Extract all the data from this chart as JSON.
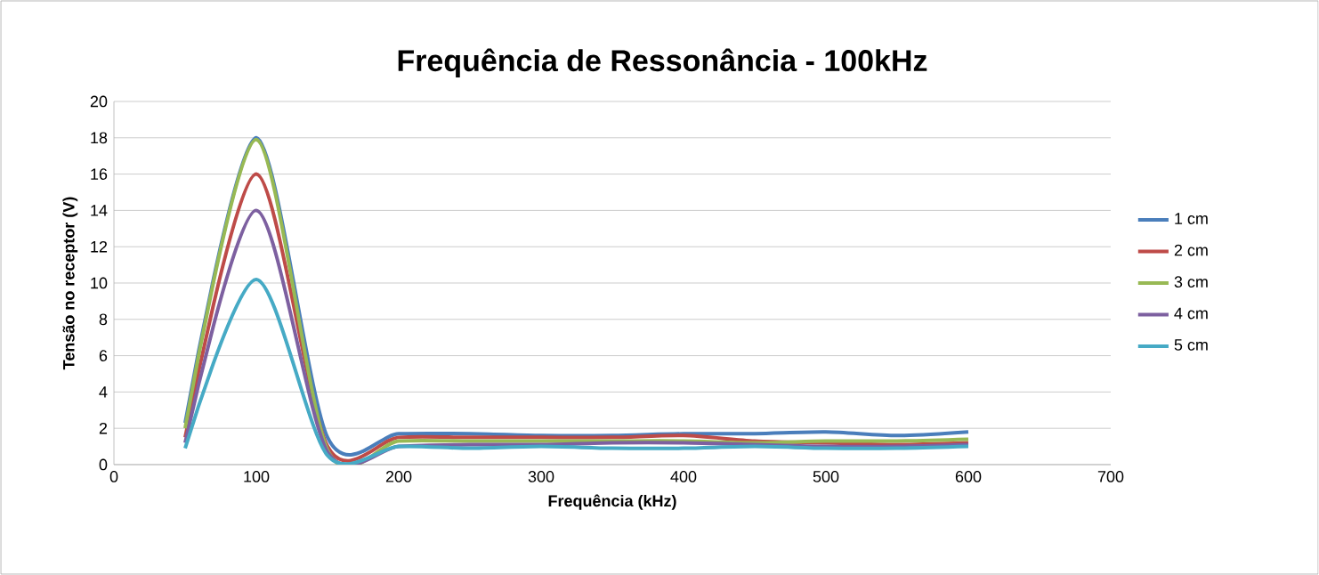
{
  "chart_data": {
    "type": "line",
    "title": "Frequência de Ressonância - 100kHz",
    "xlabel": "Frequência (kHz)",
    "ylabel": "Tensão no receptor (V)",
    "x": [
      50,
      100,
      150,
      200,
      250,
      300,
      350,
      400,
      450,
      500,
      550,
      600
    ],
    "series": [
      {
        "name": "1 cm",
        "color": "#4a7ebb",
        "values": [
          2.3,
          18,
          1.5,
          1.7,
          1.7,
          1.6,
          1.6,
          1.7,
          1.7,
          1.8,
          1.6,
          1.8
        ]
      },
      {
        "name": "2 cm",
        "color": "#be4b48",
        "values": [
          1.5,
          16,
          1.0,
          1.5,
          1.5,
          1.5,
          1.5,
          1.6,
          1.3,
          1.2,
          1.1,
          1.2
        ]
      },
      {
        "name": "3 cm",
        "color": "#98b954",
        "values": [
          2.0,
          17.9,
          0.8,
          1.3,
          1.3,
          1.3,
          1.3,
          1.3,
          1.2,
          1.3,
          1.3,
          1.4
        ]
      },
      {
        "name": "4 cm",
        "color": "#7d60a0",
        "values": [
          1.2,
          14,
          0.7,
          1.0,
          1.1,
          1.1,
          1.2,
          1.2,
          1.1,
          1.0,
          1.0,
          1.1
        ]
      },
      {
        "name": "5 cm",
        "color": "#46aac5",
        "values": [
          0.9,
          10.2,
          0.5,
          1.0,
          0.9,
          1.0,
          0.9,
          0.9,
          1.0,
          0.9,
          0.9,
          1.0
        ]
      }
    ],
    "xlim": [
      0,
      700
    ],
    "xticks": [
      0,
      100,
      200,
      300,
      400,
      500,
      600,
      700
    ],
    "ylim": [
      0,
      20
    ],
    "yticks": [
      0,
      2,
      4,
      6,
      8,
      10,
      12,
      14,
      16,
      18,
      20
    ],
    "grid": "y",
    "legend": "right",
    "marker": "none",
    "line_style": "solid"
  }
}
